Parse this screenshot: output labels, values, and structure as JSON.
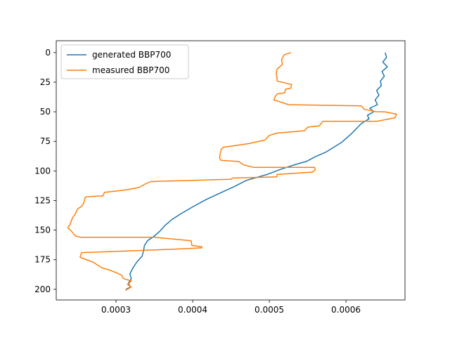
{
  "chart_data": {
    "type": "line",
    "title": "",
    "xlabel": "",
    "ylabel": "",
    "xlim": [
      0.000222,
      0.000677
    ],
    "ylim": [
      209,
      -10
    ],
    "y_inverted": true,
    "grid": false,
    "legend_position": "top-left",
    "x_ticks": [
      {
        "value": 0.0003,
        "label": "0.0003"
      },
      {
        "value": 0.0004,
        "label": "0.0004"
      },
      {
        "value": 0.0005,
        "label": "0.0005"
      },
      {
        "value": 0.0006,
        "label": "0.0006"
      }
    ],
    "y_ticks": [
      {
        "value": 0,
        "label": "0"
      },
      {
        "value": 25,
        "label": "25"
      },
      {
        "value": 50,
        "label": "50"
      },
      {
        "value": 75,
        "label": "75"
      },
      {
        "value": 100,
        "label": "100"
      },
      {
        "value": 125,
        "label": "125"
      },
      {
        "value": 150,
        "label": "150"
      },
      {
        "value": 175,
        "label": "175"
      },
      {
        "value": 200,
        "label": "200"
      }
    ],
    "series": [
      {
        "name": "generated BBP700",
        "color": "#1f77b4",
        "points": [
          [
            0.000651,
            0
          ],
          [
            0.000653,
            4
          ],
          [
            0.000648,
            8
          ],
          [
            0.000654,
            12
          ],
          [
            0.000647,
            16
          ],
          [
            0.00065,
            20
          ],
          [
            0.000645,
            24
          ],
          [
            0.000646,
            28
          ],
          [
            0.00064,
            32
          ],
          [
            0.000643,
            36
          ],
          [
            0.000638,
            40
          ],
          [
            0.000641,
            44
          ],
          [
            0.000631,
            47
          ],
          [
            0.000636,
            50
          ],
          [
            0.000628,
            53
          ],
          [
            0.00063,
            56
          ],
          [
            0.00062,
            60
          ],
          [
            0.000614,
            64
          ],
          [
            0.000608,
            68
          ],
          [
            0.000601,
            72
          ],
          [
            0.000594,
            76
          ],
          [
            0.000584,
            80
          ],
          [
            0.000574,
            84
          ],
          [
            0.00056,
            88
          ],
          [
            0.000548,
            92
          ],
          [
            0.000532,
            95
          ],
          [
            0.000513,
            99
          ],
          [
            0.000497,
            103
          ],
          [
            0.00047,
            108
          ],
          [
            0.000455,
            113
          ],
          [
            0.000438,
            118
          ],
          [
            0.000418,
            124
          ],
          [
            0.000401,
            130
          ],
          [
            0.000385,
            136
          ],
          [
            0.000373,
            141
          ],
          [
            0.000364,
            146
          ],
          [
            0.000357,
            151
          ],
          [
            0.00035,
            155
          ],
          [
            0.000341,
            159
          ],
          [
            0.000337,
            163
          ],
          [
            0.000336,
            167
          ],
          [
            0.000334,
            172
          ],
          [
            0.000327,
            177
          ],
          [
            0.000322,
            182
          ],
          [
            0.000318,
            187
          ],
          [
            0.00032,
            191
          ],
          [
            0.000316,
            195
          ],
          [
            0.000319,
            198
          ],
          [
            0.000313,
            200
          ]
        ]
      },
      {
        "name": "measured BBP700",
        "color": "#ff7f0e",
        "points": [
          [
            0.000528,
            0
          ],
          [
            0.000519,
            2
          ],
          [
            0.000516,
            6
          ],
          [
            0.000517,
            10
          ],
          [
            0.00051,
            14
          ],
          [
            0.000509,
            18
          ],
          [
            0.00051,
            21
          ],
          [
            0.00051,
            24
          ],
          [
            0.000529,
            27
          ],
          [
            0.000528,
            30
          ],
          [
            0.000521,
            31
          ],
          [
            0.00052,
            34
          ],
          [
            0.00051,
            35
          ],
          [
            0.000507,
            38
          ],
          [
            0.000506,
            40
          ],
          [
            0.000525,
            44
          ],
          [
            0.00062,
            45
          ],
          [
            0.000624,
            48
          ],
          [
            0.00064,
            50
          ],
          [
            0.00065,
            50
          ],
          [
            0.000666,
            52
          ],
          [
            0.000664,
            55
          ],
          [
            0.000641,
            58
          ],
          [
            0.00057,
            58
          ],
          [
            0.000565,
            62
          ],
          [
            0.00055,
            63
          ],
          [
            0.000546,
            66
          ],
          [
            0.00051,
            68
          ],
          [
            0.0005,
            70
          ],
          [
            0.000494,
            74
          ],
          [
            0.000472,
            77
          ],
          [
            0.00044,
            80
          ],
          [
            0.000437,
            82
          ],
          [
            0.000436,
            85
          ],
          [
            0.000435,
            89
          ],
          [
            0.000437,
            91
          ],
          [
            0.00046,
            92
          ],
          [
            0.000467,
            95
          ],
          [
            0.00048,
            97
          ],
          [
            0.000559,
            97
          ],
          [
            0.00056,
            99
          ],
          [
            0.000556,
            101
          ],
          [
            0.00051,
            103
          ],
          [
            0.00051,
            105
          ],
          [
            0.000452,
            106
          ],
          [
            0.00045,
            107
          ],
          [
            0.000345,
            109
          ],
          [
            0.000338,
            111
          ],
          [
            0.00033,
            114
          ],
          [
            0.000313,
            116
          ],
          [
            0.0003,
            117
          ],
          [
            0.000285,
            118
          ],
          [
            0.000283,
            121
          ],
          [
            0.00026,
            122
          ],
          [
            0.000258,
            127
          ],
          [
            0.000255,
            130
          ],
          [
            0.00025,
            132
          ],
          [
            0.000247,
            136
          ],
          [
            0.000243,
            140
          ],
          [
            0.00024,
            145
          ],
          [
            0.000237,
            148
          ],
          [
            0.000242,
            151
          ],
          [
            0.000247,
            155
          ],
          [
            0.000254,
            156
          ],
          [
            0.00035,
            156
          ],
          [
            0.000398,
            159
          ],
          [
            0.000399,
            163
          ],
          [
            0.000412,
            164
          ],
          [
            0.000412,
            165
          ],
          [
            0.00038,
            166
          ],
          [
            0.00034,
            167
          ],
          [
            0.000255,
            169
          ],
          [
            0.000253,
            173
          ],
          [
            0.000257,
            174
          ],
          [
            0.00027,
            177
          ],
          [
            0.000282,
            182
          ],
          [
            0.000293,
            184
          ],
          [
            0.0003,
            186
          ],
          [
            0.000307,
            188
          ],
          [
            0.00031,
            191
          ],
          [
            0.00032,
            193
          ],
          [
            0.000315,
            196
          ],
          [
            0.00032,
            198
          ],
          [
            0.000312,
            201
          ]
        ]
      }
    ]
  }
}
